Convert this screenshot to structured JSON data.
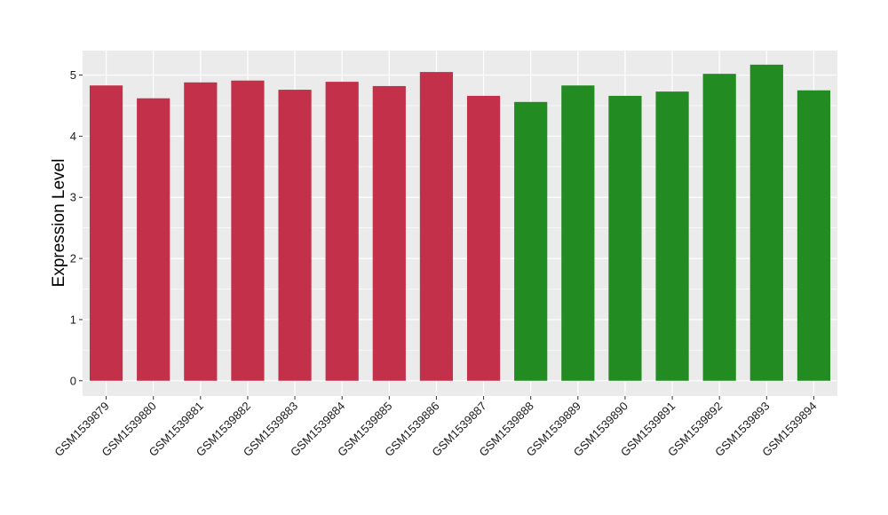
{
  "chart_data": {
    "type": "bar",
    "title": "",
    "xlabel": "",
    "ylabel": "Expression Level",
    "ylim": [
      -0.25,
      5.4
    ],
    "yticks": [
      0,
      1,
      2,
      3,
      4,
      5
    ],
    "grid": true,
    "categories": [
      "GSM1539879",
      "GSM1539880",
      "GSM1539881",
      "GSM1539882",
      "GSM1539883",
      "GSM1539884",
      "GSM1539885",
      "GSM1539886",
      "GSM1539887",
      "GSM1539888",
      "GSM1539889",
      "GSM1539890",
      "GSM1539891",
      "GSM1539892",
      "GSM1539893",
      "GSM1539894"
    ],
    "values": [
      4.83,
      4.62,
      4.88,
      4.91,
      4.76,
      4.89,
      4.82,
      5.05,
      4.66,
      4.56,
      4.83,
      4.66,
      4.73,
      5.02,
      5.17,
      4.75
    ],
    "bar_colors": [
      "#c3304a",
      "#c3304a",
      "#c3304a",
      "#c3304a",
      "#c3304a",
      "#c3304a",
      "#c3304a",
      "#c3304a",
      "#c3304a",
      "#228b22",
      "#228b22",
      "#228b22",
      "#228b22",
      "#228b22",
      "#228b22",
      "#228b22"
    ],
    "panel_background": "#ebebeb",
    "gridline_color": "#ffffff"
  }
}
